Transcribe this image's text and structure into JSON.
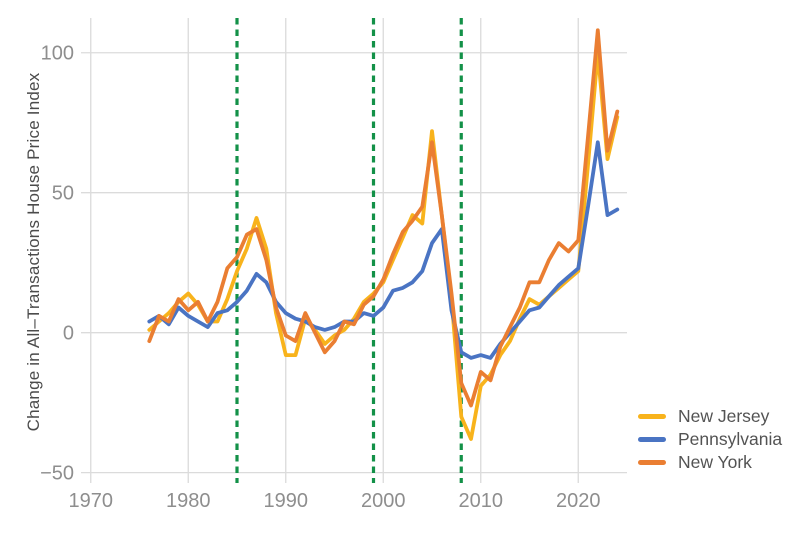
{
  "chart_data": {
    "type": "line",
    "title": "",
    "xlabel": "",
    "ylabel": "Change in All–Transactions House Price Index",
    "axis": {
      "xlim": [
        1969.0,
        2025.0
      ],
      "ylim": [
        -53.7,
        112.4
      ],
      "grid": true
    },
    "x_tick_values": [
      1970,
      1980,
      1990,
      2000,
      2010,
      2020
    ],
    "x_tick_labels": [
      "1970",
      "1980",
      "1990",
      "2000",
      "2010",
      "2020"
    ],
    "y_tick_values": [
      -50,
      0,
      50,
      100
    ],
    "y_tick_labels": [
      "−50",
      "0",
      "50",
      "100"
    ],
    "grid_color": "#dbdbdb",
    "tick_label_color": "#8e8e8e",
    "event_lines": {
      "years": [
        1985,
        1999,
        2008
      ],
      "color": "#139148",
      "style": "dashed"
    },
    "legend_position": "right-bottom",
    "x": [
      1976,
      1977,
      1978,
      1979,
      1980,
      1981,
      1982,
      1983,
      1984,
      1985,
      1986,
      1987,
      1988,
      1989,
      1990,
      1991,
      1992,
      1993,
      1994,
      1995,
      1996,
      1997,
      1998,
      1999,
      2000,
      2001,
      2002,
      2003,
      2004,
      2005,
      2006,
      2007,
      2008,
      2009,
      2010,
      2011,
      2012,
      2013,
      2014,
      2015,
      2016,
      2017,
      2018,
      2019,
      2020,
      2021,
      2022,
      2023,
      2024
    ],
    "series": [
      {
        "name": "New Jersey",
        "color": "#f8b31c",
        "values": [
          1,
          4,
          7,
          11,
          14,
          10,
          4,
          4,
          12,
          22,
          30,
          41,
          30,
          7,
          -8,
          -8,
          5,
          1,
          -4,
          -1,
          1,
          5,
          11,
          14,
          18,
          26,
          34,
          42,
          39,
          72,
          42,
          12,
          -30,
          -38,
          -19,
          -15,
          -8,
          -3,
          5,
          12,
          10,
          13,
          16,
          19,
          22,
          60,
          100,
          62,
          77
        ]
      },
      {
        "name": "Pennsylvania",
        "color": "#4a74c3",
        "values": [
          4,
          6,
          3,
          9,
          6,
          4,
          2,
          7,
          8,
          11,
          15,
          21,
          18,
          11,
          7,
          5,
          4,
          2,
          1,
          2,
          4,
          4,
          7,
          6,
          9,
          15,
          16,
          18,
          22,
          32,
          37,
          8,
          -7,
          -9,
          -8,
          -9,
          -4,
          0,
          4,
          8,
          9,
          13,
          17,
          20,
          23,
          45,
          68,
          42,
          44
        ]
      },
      {
        "name": "New York",
        "color": "#ea7e32",
        "values": [
          -3,
          6,
          4,
          12,
          8,
          11,
          4,
          11,
          23,
          27,
          35,
          37,
          26,
          9,
          -1,
          -3,
          7,
          0,
          -7,
          -3,
          4,
          3,
          10,
          13,
          19,
          28,
          36,
          40,
          45,
          68,
          42,
          14,
          -18,
          -26,
          -14,
          -17,
          -5,
          2,
          9,
          18,
          18,
          26,
          32,
          29,
          33,
          70,
          108,
          65,
          79
        ]
      }
    ]
  }
}
